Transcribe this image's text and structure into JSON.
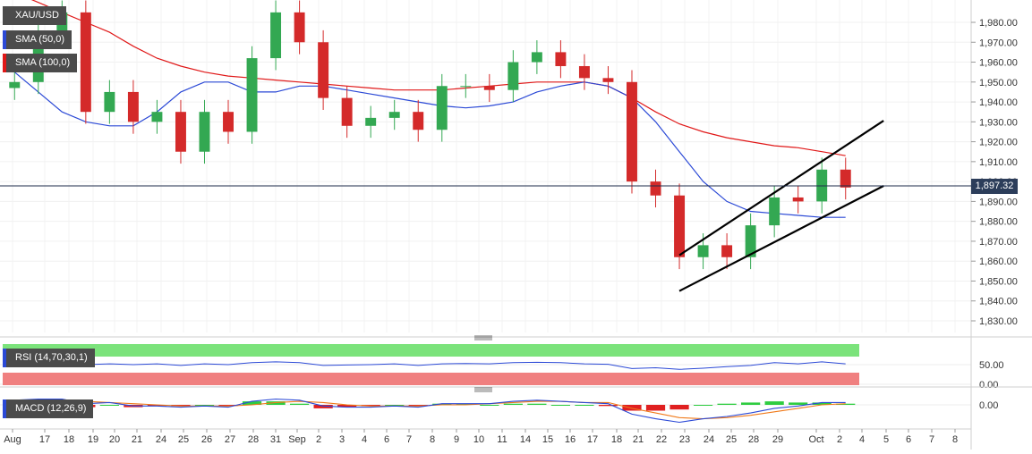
{
  "instrument": "XAU/USD",
  "last_price": "1,897.32",
  "indicators": {
    "sma50": {
      "label": "SMA (50,0)",
      "color": "#2b49d6"
    },
    "sma100": {
      "label": "SMA (100,0)",
      "color": "#e01818"
    },
    "rsi": {
      "label": "RSI (14,70,30,1)"
    },
    "macd": {
      "label": "MACD (12,26,9)"
    }
  },
  "colors": {
    "up_candle": "#33a852",
    "down_candle": "#d42a2a",
    "rsi_overbought": "#7be37b",
    "rsi_oversold": "#f08080",
    "channel": "#000000"
  },
  "price_axis": {
    "ticks": [
      "1,980.00",
      "1,970.00",
      "1,960.00",
      "1,950.00",
      "1,940.00",
      "1,930.00",
      "1,920.00",
      "1,910.00",
      "1,900.00",
      "1,890.00",
      "1,880.00",
      "1,870.00",
      "1,860.00",
      "1,850.00",
      "1,840.00",
      "1,830.00"
    ]
  },
  "rsi_axis": {
    "ticks": [
      "50.00",
      "0.00"
    ]
  },
  "macd_axis": {
    "ticks": [
      "0.00"
    ]
  },
  "time_axis": {
    "labels": [
      "Aug",
      "17",
      "18",
      "19",
      "20",
      "21",
      "24",
      "25",
      "26",
      "27",
      "28",
      "31",
      "Sep",
      "2",
      "3",
      "4",
      "6",
      "7",
      "8",
      "9",
      "10",
      "11",
      "14",
      "15",
      "16",
      "17",
      "18",
      "21",
      "22",
      "23",
      "24",
      "25",
      "28",
      "29",
      "Oct",
      "2",
      "4",
      "5",
      "6",
      "7",
      "8"
    ]
  },
  "chart_data": {
    "type": "candlestick",
    "title": "XAU/USD",
    "price_range": [
      1825,
      1990
    ],
    "last_price": 1897.32,
    "dates": [
      "Aug 14",
      "Aug 17",
      "Aug 18",
      "Aug 19",
      "Aug 20",
      "Aug 21",
      "Aug 24",
      "Aug 25",
      "Aug 26",
      "Aug 27",
      "Aug 28",
      "Aug 31",
      "Sep 1",
      "Sep 2",
      "Sep 3",
      "Sep 4",
      "Sep 7",
      "Sep 8",
      "Sep 9",
      "Sep 10",
      "Sep 11",
      "Sep 14",
      "Sep 15",
      "Sep 16",
      "Sep 17",
      "Sep 18",
      "Sep 21",
      "Sep 22",
      "Sep 23",
      "Sep 24",
      "Sep 25",
      "Sep 28",
      "Sep 29",
      "Sep 30",
      "Oct 1",
      "Oct 2"
    ],
    "close": [
      1950,
      1975,
      1985,
      1935,
      1945,
      1930,
      1935,
      1915,
      1935,
      1925,
      1962,
      1985,
      1970,
      1942,
      1928,
      1932,
      1935,
      1926,
      1948,
      1948,
      1946,
      1960,
      1965,
      1958,
      1952,
      1950,
      1900,
      1893,
      1862,
      1868,
      1862,
      1878,
      1892,
      1890,
      1906,
      1897
    ],
    "sma50": [
      1955,
      1945,
      1935,
      1930,
      1928,
      1928,
      1935,
      1945,
      1950,
      1950,
      1945,
      1945,
      1948,
      1948,
      1946,
      1944,
      1942,
      1940,
      1938,
      1937,
      1938,
      1940,
      1945,
      1948,
      1950,
      1948,
      1942,
      1930,
      1915,
      1900,
      1890,
      1885,
      1884,
      1883,
      1882,
      1882
    ],
    "sma100": [
      1995,
      1990,
      1985,
      1980,
      1975,
      1968,
      1962,
      1958,
      1955,
      1953,
      1952,
      1951,
      1950,
      1949,
      1948,
      1947,
      1946,
      1946,
      1946,
      1947,
      1948,
      1949,
      1950,
      1950,
      1950,
      1948,
      1942,
      1935,
      1929,
      1925,
      1922,
      1920,
      1918,
      1917,
      1915,
      1913
    ],
    "channel": {
      "upper": [
        [
          "Sep 23",
          1863
        ],
        [
          "Oct 2",
          1918
        ]
      ],
      "lower": [
        [
          "Sep 23",
          1845
        ],
        [
          "Oct 2",
          1888
        ]
      ]
    },
    "rsi": [
      55,
      57,
      58,
      50,
      52,
      50,
      52,
      48,
      52,
      50,
      55,
      57,
      55,
      48,
      49,
      50,
      52,
      48,
      52,
      53,
      52,
      55,
      56,
      55,
      52,
      51,
      40,
      42,
      38,
      41,
      45,
      48,
      55,
      52,
      57,
      52
    ],
    "macd": [
      4,
      5,
      5,
      1,
      2,
      -1,
      -1,
      -2,
      -1,
      -2,
      3,
      5,
      4,
      -1,
      -2,
      -2,
      -1,
      -2,
      1,
      1,
      1,
      3,
      4,
      3,
      2,
      1,
      -8,
      -12,
      -15,
      -12,
      -10,
      -7,
      -3,
      -1,
      2,
      2
    ],
    "signal": [
      3,
      4,
      4,
      3,
      2,
      1,
      0,
      -1,
      -1,
      -1,
      0,
      2,
      3,
      2,
      0,
      -1,
      -1,
      -1,
      0,
      0,
      1,
      2,
      3,
      3,
      2,
      2,
      -3,
      -7,
      -11,
      -12,
      -11,
      -9,
      -6,
      -3,
      0,
      1
    ]
  }
}
